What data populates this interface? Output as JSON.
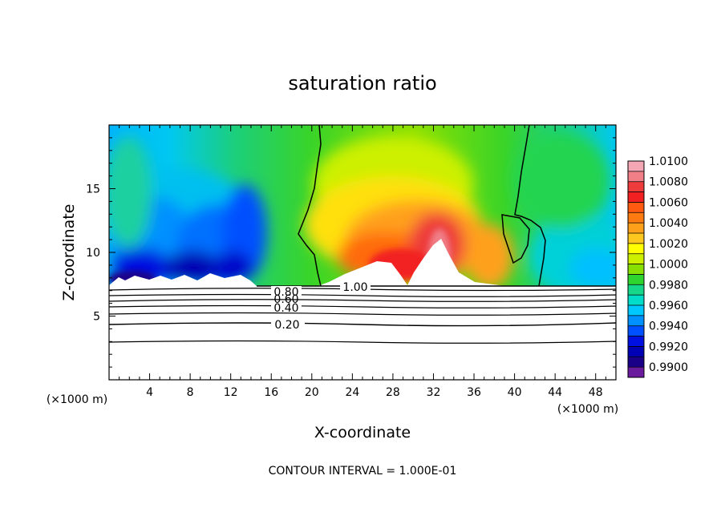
{
  "chart_data": {
    "type": "heatmap",
    "title": "saturation ratio",
    "xlabel": "X-coordinate",
    "ylabel": "Z-coordinate",
    "x_unit_label_left": "(×1000 m)",
    "x_unit_label_right": "(×1000 m)",
    "footer": "CONTOUR INTERVAL = 1.000E-01",
    "xlim": [
      0,
      50
    ],
    "ylim": [
      0,
      20
    ],
    "x_ticks": [
      4,
      8,
      12,
      16,
      20,
      24,
      28,
      32,
      36,
      40,
      44,
      48
    ],
    "y_ticks": [
      5,
      10,
      15
    ],
    "colorbar": {
      "min": 0.99,
      "max": 1.01,
      "levels": [
        {
          "label": "1.0100",
          "color": "#f4a6b4"
        },
        {
          "label": "",
          "color": "#f07f88"
        },
        {
          "label": "1.0080",
          "color": "#ee3b3b"
        },
        {
          "label": "",
          "color": "#f22020"
        },
        {
          "label": "1.0060",
          "color": "#ff5a10"
        },
        {
          "label": "",
          "color": "#ff7a10"
        },
        {
          "label": "1.0040",
          "color": "#ffa01a"
        },
        {
          "label": "",
          "color": "#ffc81e"
        },
        {
          "label": "1.0020",
          "color": "#ffff00"
        },
        {
          "label": "",
          "color": "#ccf000"
        },
        {
          "label": "1.0000",
          "color": "#88e000"
        },
        {
          "label": "",
          "color": "#2fd42f"
        },
        {
          "label": "0.9980",
          "color": "#16d68a"
        },
        {
          "label": "",
          "color": "#00dcc8"
        },
        {
          "label": "0.9960",
          "color": "#00c8ff"
        },
        {
          "label": "",
          "color": "#0090ff"
        },
        {
          "label": "0.9940",
          "color": "#0050ff"
        },
        {
          "label": "",
          "color": "#0010e0"
        },
        {
          "label": "0.9920",
          "color": "#0000b4"
        },
        {
          "label": "",
          "color": "#1a0088"
        },
        {
          "label": "0.9900",
          "color": "#6a1a9c"
        }
      ]
    },
    "contour_labels": [
      "1.00",
      "0.80",
      "0.60",
      "0.40",
      "0.20"
    ],
    "contour_levels": [
      0.2,
      0.4,
      0.6,
      0.8,
      1.0
    ]
  }
}
